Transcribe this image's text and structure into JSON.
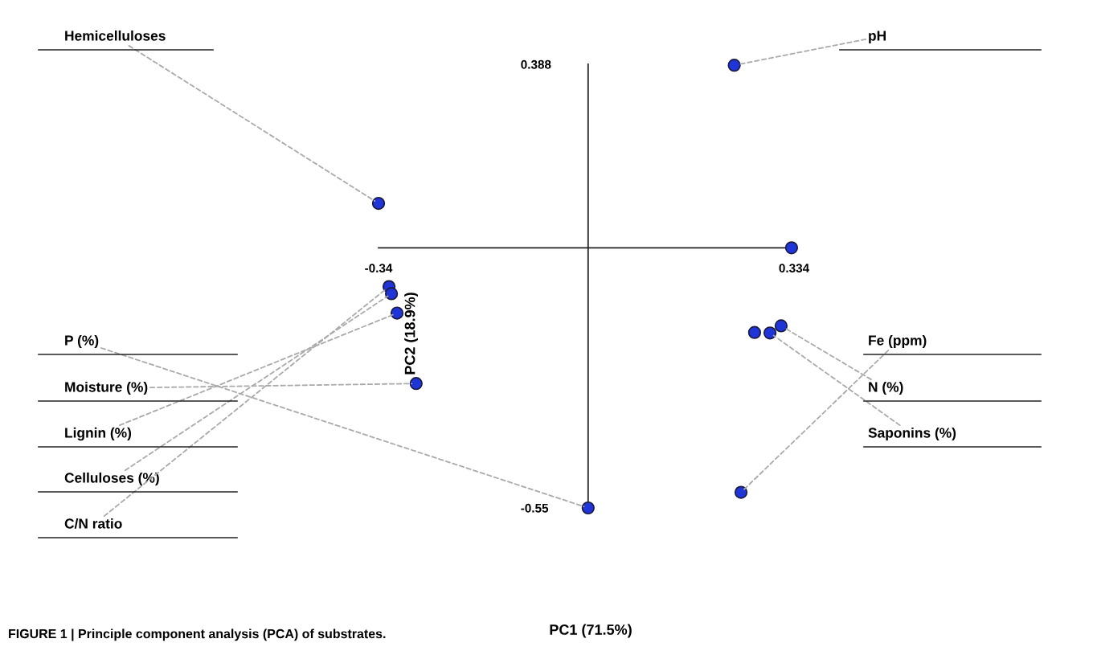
{
  "chart_data": {
    "type": "scatter",
    "ylabel": "PC2 (18.9%)",
    "x": [
      0.237,
      -0.34,
      0.33,
      -0.323,
      -0.319,
      -0.31,
      -0.279,
      0,
      0.27,
      0.295,
      0.313,
      0.248
    ],
    "series": [
      {
        "color": "#1f35d8",
        "values": [
          0.386,
          0.094,
          0.0,
          -0.082,
          -0.097,
          -0.138,
          -0.287,
          -0.55,
          -0.179,
          -0.18,
          -0.165,
          -0.517
        ]
      }
    ],
    "marker": "circle",
    "grid": false,
    "legend": false,
    "xlim": [
      -0.34,
      0.334
    ],
    "ylim": [
      -0.55,
      0.388
    ],
    "xticks": [
      -0.34,
      0.334
    ],
    "yticks": [
      -0.55,
      0.388
    ],
    "annotations": [
      {
        "text": "Hemicelluloses",
        "x": -0.34,
        "y": 0.094
      },
      {
        "text": "pH",
        "x": 0.237,
        "y": 0.386
      },
      {
        "text": "P (%)",
        "x": 0,
        "y": -0.55
      },
      {
        "text": "Moisture (%)",
        "x": -0.279,
        "y": -0.287
      },
      {
        "text": "Lignin (%)",
        "x": -0.31,
        "y": -0.138
      },
      {
        "text": "Celluloses (%)",
        "x": -0.319,
        "y": -0.097
      },
      {
        "text": "C/N ratio",
        "x": -0.323,
        "y": -0.082
      },
      {
        "text": "Fe (ppm)",
        "x": 0.248,
        "y": -0.517
      },
      {
        "text": "N (%)",
        "x": 0.313,
        "y": -0.165
      },
      {
        "text": "Saponins (%)",
        "x": 0.295,
        "y": -0.18
      },
      "PC1 (71.5%)",
      "FIGURE 1 | Principle component analysis (PCA) of substrates."
    ]
  }
}
